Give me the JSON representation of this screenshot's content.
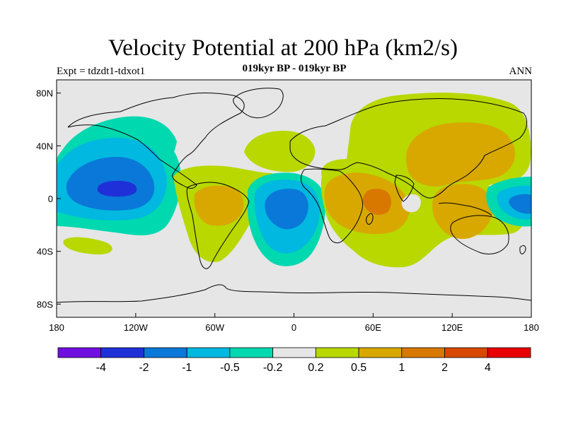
{
  "title": "Velocity Potential at 200 hPa (km2/s)",
  "subtitle": "019kyr BP - 019kyr BP",
  "left_label": "Expt = tdzdt1-tdxot1",
  "right_label": "ANN",
  "map": {
    "projection": "cylindrical-equidistant",
    "lon_range": [
      -180,
      180
    ],
    "lat_range": [
      -90,
      90
    ],
    "background_color": "#e6e6e6",
    "coastline_color": "#000000",
    "x_ticks": [
      {
        "lon": -180,
        "label": "180"
      },
      {
        "lon": -120,
        "label": "120W"
      },
      {
        "lon": -60,
        "label": "60W"
      },
      {
        "lon": 0,
        "label": "0"
      },
      {
        "lon": 60,
        "label": "60E"
      },
      {
        "lon": 120,
        "label": "120E"
      },
      {
        "lon": 180,
        "label": "180"
      }
    ],
    "y_ticks": [
      {
        "lat": 80,
        "label": "80N"
      },
      {
        "lat": 40,
        "label": "40N"
      },
      {
        "lat": 0,
        "label": "0"
      },
      {
        "lat": -40,
        "label": "40S"
      },
      {
        "lat": -80,
        "label": "80S"
      }
    ]
  },
  "colorbar": {
    "colors": [
      "#7010e0",
      "#2030d8",
      "#0a78d8",
      "#00b8e0",
      "#00d8b0",
      "#e6e6e6",
      "#b8d800",
      "#d8a800",
      "#d87800",
      "#d84800",
      "#e80000"
    ],
    "labels": [
      "-4",
      "-2",
      "-1",
      "-0.5",
      "-0.2",
      "0.2",
      "0.5",
      "1",
      "2",
      "4"
    ]
  },
  "chart_data": {
    "type": "filled-contour-map",
    "variable": "Velocity Potential at 200 hPa",
    "units": "km2/s",
    "contour_levels": [
      -4,
      -2,
      -1,
      -0.5,
      -0.2,
      0.2,
      0.5,
      1,
      2,
      4
    ],
    "regions": [
      {
        "name": "central-pacific-negative",
        "center_lon": -130,
        "center_lat": 8,
        "min_level": -2
      },
      {
        "name": "south-atlantic-negative",
        "center_lon": -8,
        "center_lat": -10,
        "min_level": -1
      },
      {
        "name": "western-pacific-negative",
        "center_lon": 168,
        "center_lat": -5,
        "min_level": -1
      },
      {
        "name": "south-america-positive",
        "center_lon": -60,
        "center_lat": -5,
        "max_level": 0.5
      },
      {
        "name": "africa-indian-ocean-positive",
        "center_lon": 60,
        "center_lat": -5,
        "max_level": 1
      },
      {
        "name": "asia-positive",
        "center_lon": 100,
        "center_lat": 35,
        "max_level": 0.5
      }
    ]
  }
}
